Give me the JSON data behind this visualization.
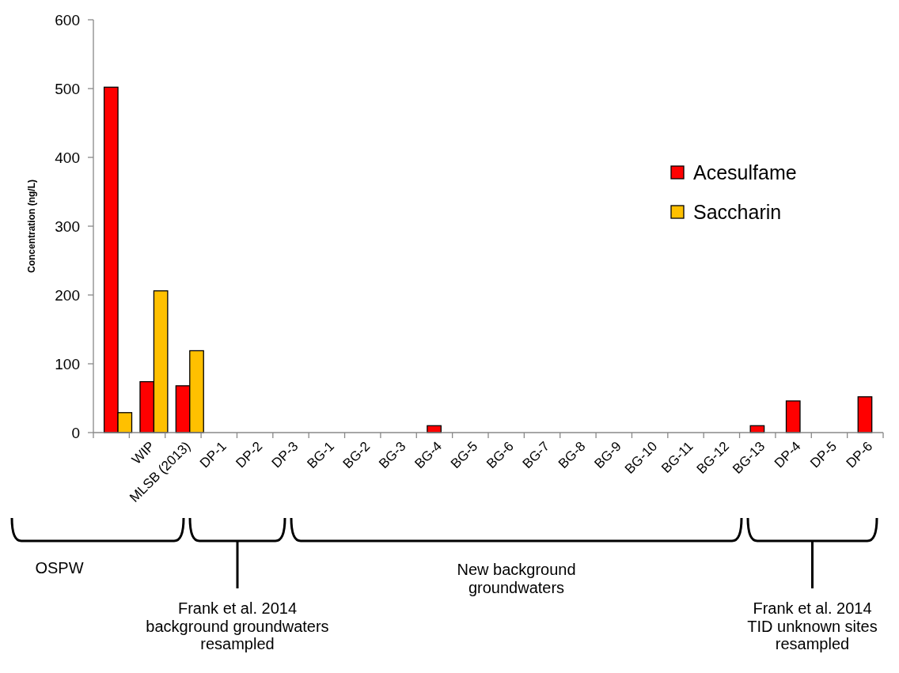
{
  "chart_data": {
    "type": "bar",
    "ylabel": "Concentration (ng/L)",
    "categories": [
      null,
      "WIP",
      "MLSB (2013)",
      "DP-1",
      "DP-2",
      "DP-3",
      "BG-1",
      "BG-2",
      "BG-3",
      "BG-4",
      "BG-5",
      "BG-6",
      "BG-7",
      "BG-8",
      "BG-9",
      "BG-10",
      "BG-11",
      "BG-12",
      "BG-13",
      "DP-4",
      "DP-5",
      "DP-6"
    ],
    "series": [
      {
        "name": "Acesulfame",
        "color": "#ff0000",
        "values": [
          502,
          74,
          68,
          0,
          0,
          0,
          0,
          0,
          0,
          10,
          0,
          0,
          0,
          0,
          0,
          0,
          0,
          0,
          10,
          46,
          0,
          52
        ]
      },
      {
        "name": "Saccharin",
        "color": "#ffc000",
        "values": [
          29,
          206,
          119,
          0,
          0,
          0,
          0,
          0,
          0,
          0,
          0,
          0,
          0,
          0,
          0,
          0,
          0,
          0,
          0,
          0,
          0,
          0
        ]
      }
    ],
    "ylim": [
      0,
      600
    ],
    "yticks": [
      0,
      100,
      200,
      300,
      400,
      500,
      600
    ],
    "grid": false,
    "legend": "top right",
    "annotations": [
      "OSPW",
      "Frank et al. 2014 background groundwaters resampled",
      "New background groundwaters",
      "Frank et al. 2014 TID unknown sites resampled"
    ]
  }
}
